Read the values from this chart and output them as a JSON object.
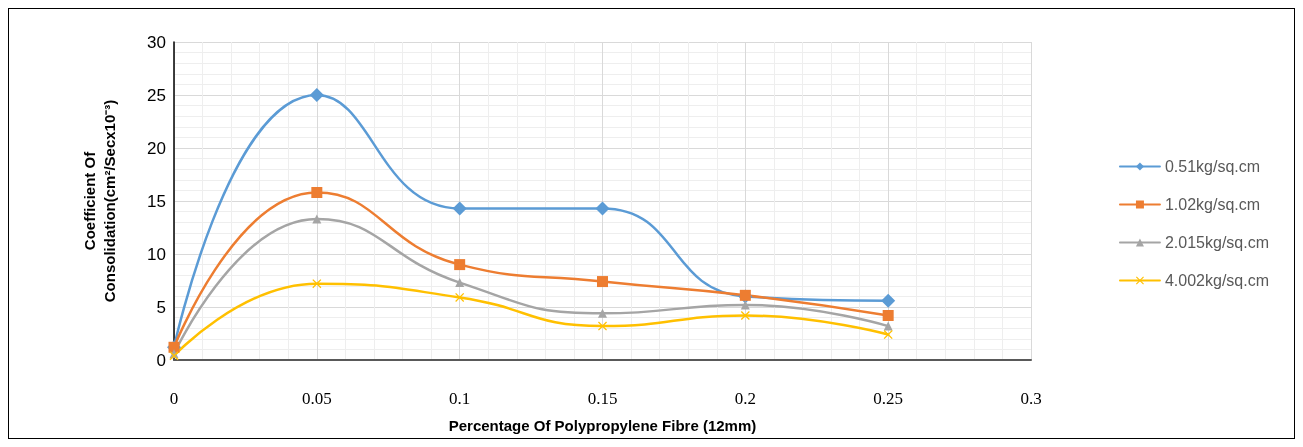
{
  "chart_data": {
    "type": "line",
    "xlabel": "Percentage Of Polypropylene Fibre (12mm)",
    "ylabel": "Coefficient Of\nConsolidation(cm²/Secx10⁻³)",
    "x": [
      0,
      0.05,
      0.1,
      0.15,
      0.2,
      0.25
    ],
    "xlim": [
      0,
      0.3
    ],
    "xticks": [
      0,
      0.05,
      0.1,
      0.15,
      0.2,
      0.25,
      0.3
    ],
    "ylim": [
      0,
      30
    ],
    "yticks": [
      0,
      5,
      10,
      15,
      20,
      25,
      30
    ],
    "grid": true,
    "legend": "right",
    "line_style": "solid",
    "series": [
      {
        "name": "0.51kg/sq.cm",
        "color": "#5b9bd5",
        "marker": "diamond",
        "values": [
          1.2,
          25,
          14.3,
          14.3,
          6.0,
          5.6
        ]
      },
      {
        "name": "1.02kg/sq.cm",
        "color": "#ed7d31",
        "marker": "square",
        "values": [
          1.2,
          15.8,
          9.0,
          7.4,
          6.1,
          4.2
        ]
      },
      {
        "name": "2.015kg/sq.cm",
        "color": "#a5a5a5",
        "marker": "triangle",
        "values": [
          0.6,
          13.3,
          7.3,
          4.4,
          5.2,
          3.2
        ]
      },
      {
        "name": "4.002kg/sq.cm",
        "color": "#ffc000",
        "marker": "cross",
        "values": [
          0.4,
          7.2,
          5.9,
          3.2,
          4.2,
          2.4
        ]
      }
    ]
  }
}
